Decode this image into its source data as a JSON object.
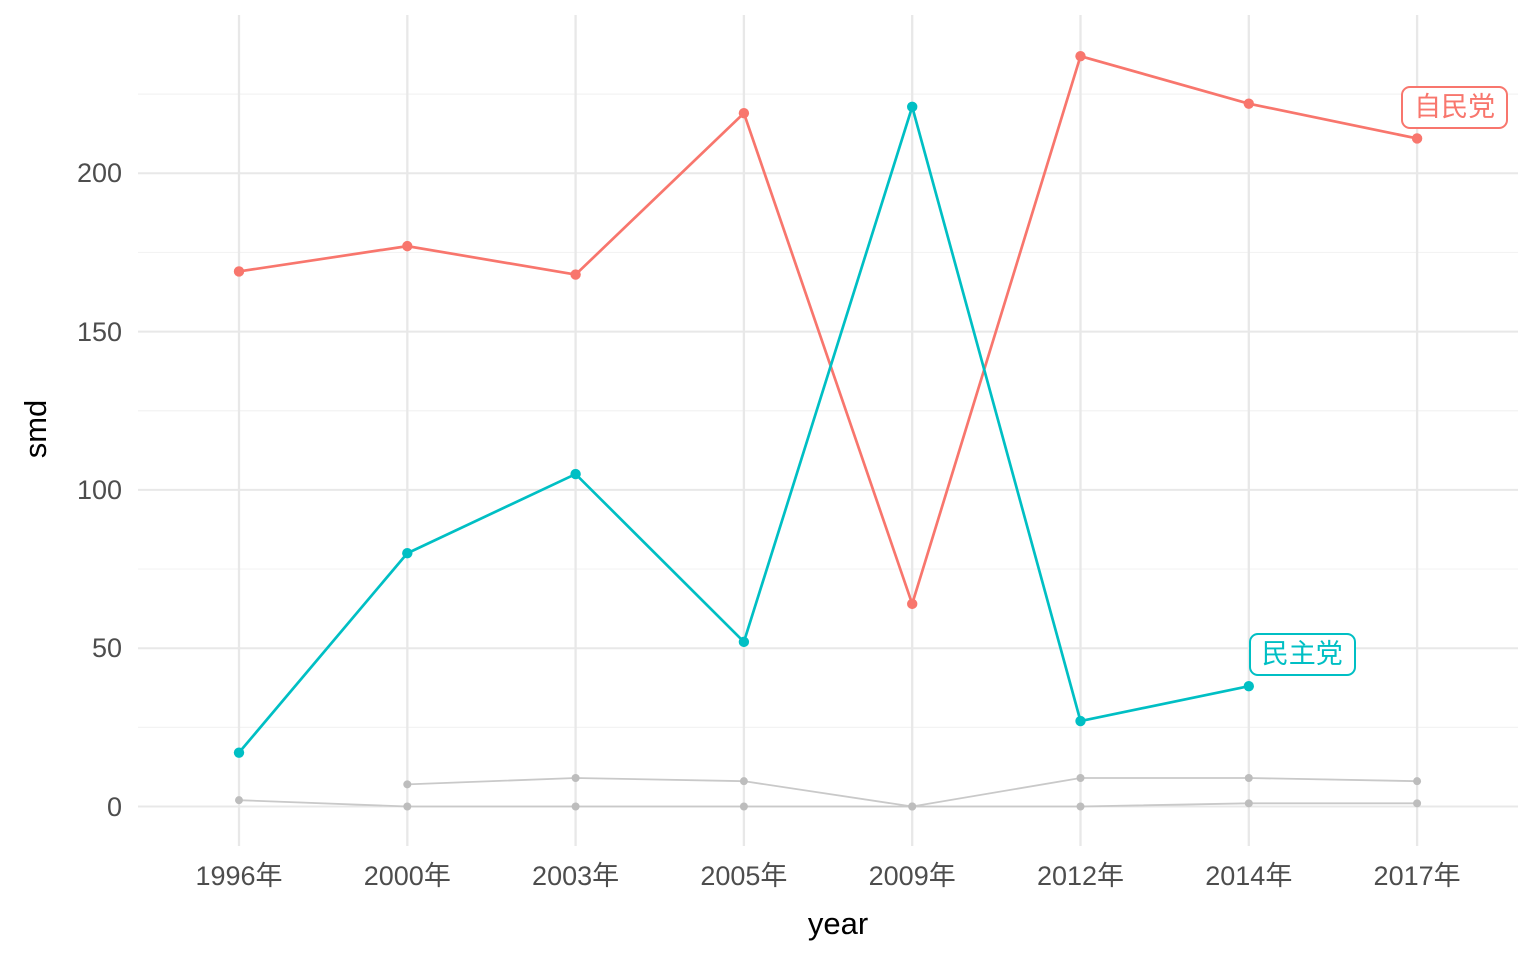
{
  "chart_data": {
    "type": "line",
    "title": "",
    "xlabel": "year",
    "ylabel": "smd",
    "x_categories": [
      "1996年",
      "2000年",
      "2003年",
      "2005年",
      "2009年",
      "2012年",
      "2014年",
      "2017年"
    ],
    "yticks": [
      0,
      50,
      100,
      150,
      200
    ],
    "ylim": [
      -12,
      250
    ],
    "grid": "major-and-minor",
    "legend_position": "none (direct labels on chart)",
    "series": [
      {
        "key": "other-1",
        "name": "unlabeled-gray-series-1",
        "label": "",
        "color": "#C9C9C9",
        "dot_color": "#BDBDBD",
        "values": [
          null,
          7,
          9,
          8,
          0,
          9,
          9,
          8
        ]
      },
      {
        "key": "other-2",
        "name": "unlabeled-gray-series-2",
        "label": "",
        "color": "#C9C9C9",
        "dot_color": "#BDBDBD",
        "values": [
          2,
          0,
          0,
          0,
          0,
          0,
          1,
          1
        ]
      },
      {
        "key": "jiminto",
        "name": "自民党",
        "label": "自民党",
        "color": "#F8766D",
        "dot_color": "#F8766D",
        "values": [
          169,
          177,
          168,
          219,
          64,
          237,
          222,
          211
        ]
      },
      {
        "key": "minshuto",
        "name": "民主党",
        "label": "民主党",
        "color": "#00BFC4",
        "dot_color": "#00BFC4",
        "values": [
          17,
          80,
          105,
          52,
          221,
          27,
          38,
          null
        ]
      }
    ]
  }
}
